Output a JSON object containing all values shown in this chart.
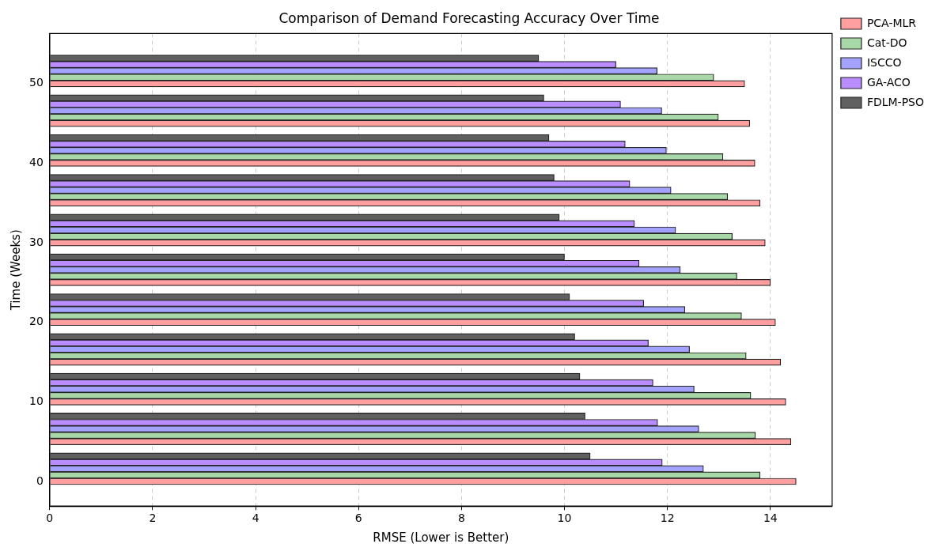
{
  "chart_data": {
    "type": "bar",
    "orientation": "horizontal",
    "title": "Comparison of Demand Forecasting Accuracy Over Time",
    "xlabel": "RMSE (Lower is Better)",
    "ylabel": "Time (Weeks)",
    "series": [
      {
        "name": "PCA-MLR",
        "color": "#ff9f9f",
        "x": [
          0,
          5,
          10,
          15,
          20,
          25,
          30,
          35,
          40,
          45,
          50
        ],
        "values": [
          14.5,
          14.4,
          14.3,
          14.2,
          14.1,
          14.0,
          13.9,
          13.8,
          13.7,
          13.6,
          13.5
        ]
      },
      {
        "name": "Cat-DO",
        "color": "#a8d8a8",
        "x": [
          0.8,
          5.8,
          10.8,
          15.8,
          20.8,
          25.8,
          30.8,
          35.8,
          40.8,
          45.8,
          50.8
        ],
        "values": [
          13.8,
          13.71,
          13.62,
          13.53,
          13.44,
          13.35,
          13.26,
          13.17,
          13.08,
          12.99,
          12.9
        ]
      },
      {
        "name": "ISCCO",
        "color": "#a3a3ff",
        "x": [
          1.6,
          6.6,
          11.6,
          16.6,
          21.6,
          26.6,
          31.6,
          36.6,
          41.6,
          46.6,
          51.6
        ],
        "values": [
          12.7,
          12.61,
          12.52,
          12.43,
          12.34,
          12.25,
          12.16,
          12.07,
          11.98,
          11.89,
          11.8
        ]
      },
      {
        "name": "GA-ACO",
        "color": "#b98cff",
        "x": [
          2.4,
          7.4,
          12.4,
          17.4,
          22.4,
          27.4,
          32.4,
          37.4,
          42.4,
          47.4,
          52.4
        ],
        "values": [
          11.9,
          11.81,
          11.72,
          11.63,
          11.54,
          11.45,
          11.36,
          11.27,
          11.18,
          11.09,
          11.0
        ]
      },
      {
        "name": "FDLM-PSO",
        "color": "#606060",
        "x": [
          3.2,
          8.2,
          13.2,
          18.2,
          23.2,
          28.2,
          33.2,
          38.2,
          43.2,
          48.2,
          53.2
        ],
        "values": [
          10.5,
          10.4,
          10.3,
          10.2,
          10.1,
          10.0,
          9.9,
          9.8,
          9.7,
          9.6,
          9.5
        ]
      }
    ],
    "xlim": [
      0,
      15.2
    ],
    "xticks": [
      0,
      2,
      4,
      6,
      8,
      10,
      12,
      14
    ],
    "ylim": [
      -3.1,
      56.3
    ],
    "yticks": [
      0,
      10,
      20,
      30,
      40,
      50
    ],
    "grid": "x",
    "line_style": "dashed",
    "legend": "top right"
  }
}
